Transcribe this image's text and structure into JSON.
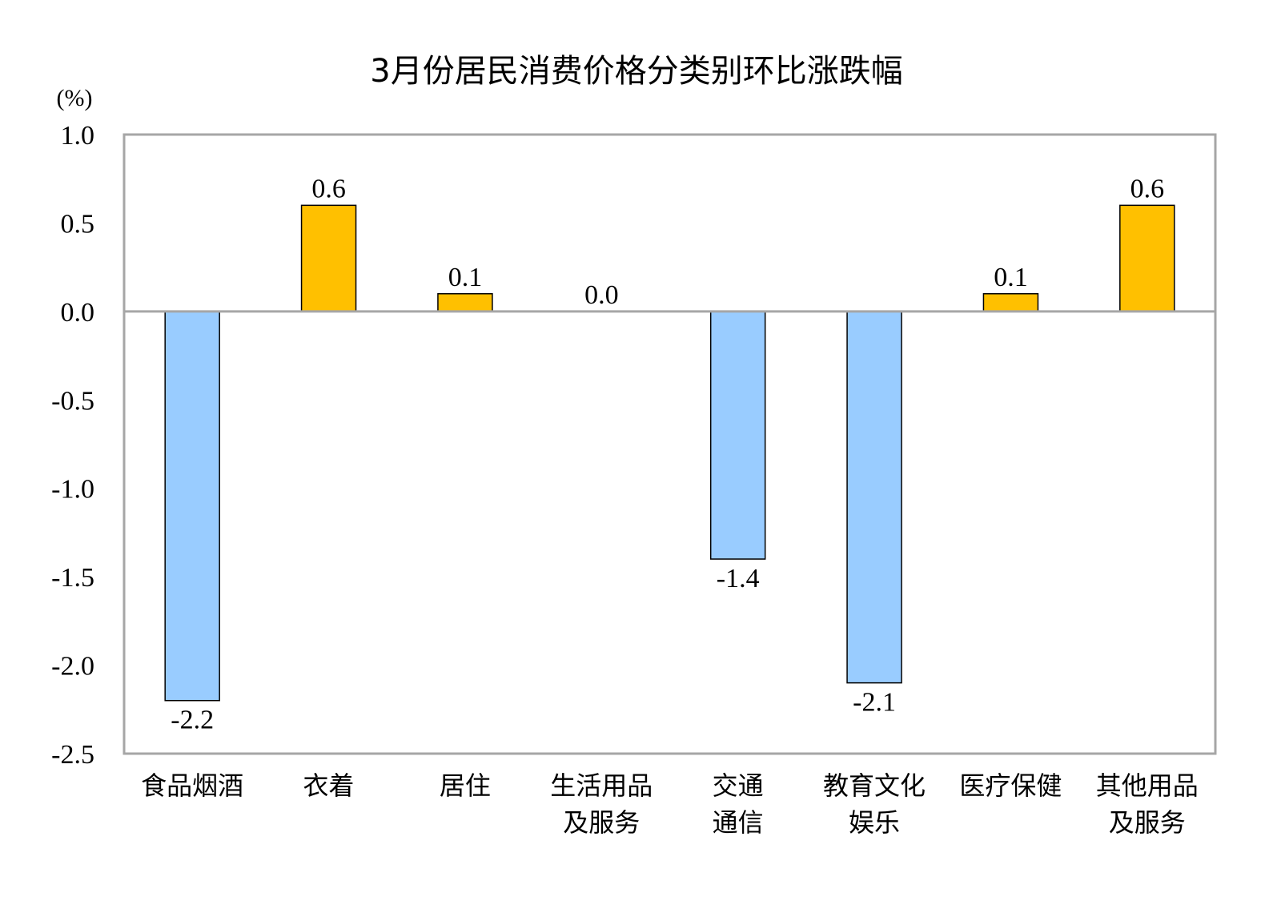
{
  "chart_data": {
    "type": "bar",
    "title": "3月份居民消费价格分类别环比涨跌幅",
    "y_unit": "(%)",
    "categories": [
      [
        "食品烟酒"
      ],
      [
        "衣着"
      ],
      [
        "居住"
      ],
      [
        "生活用品",
        "及服务"
      ],
      [
        "交通",
        "通信"
      ],
      [
        "教育文化",
        "娱乐"
      ],
      [
        "医疗保健"
      ],
      [
        "其他用品",
        "及服务"
      ]
    ],
    "values": [
      -2.2,
      0.6,
      0.1,
      0.0,
      -1.4,
      -2.1,
      0.1,
      0.6
    ],
    "value_labels": [
      "-2.2",
      "0.6",
      "0.1",
      "0.0",
      "-1.4",
      "-2.1",
      "0.1",
      "0.6"
    ],
    "ylim": [
      -2.5,
      1.0
    ],
    "yticks": [
      1.0,
      0.5,
      0.0,
      -0.5,
      -1.0,
      -1.5,
      -2.0,
      -2.5
    ],
    "ytick_labels": [
      "1.0",
      "0.5",
      "0.0",
      "-0.5",
      "-1.0",
      "-1.5",
      "-2.0",
      "-2.5"
    ],
    "grid": false,
    "legend": "none",
    "colors": {
      "positive": "#FFC000",
      "negative": "#99CCFF",
      "outline": "#000000",
      "frame": "#A6A6A6"
    }
  }
}
